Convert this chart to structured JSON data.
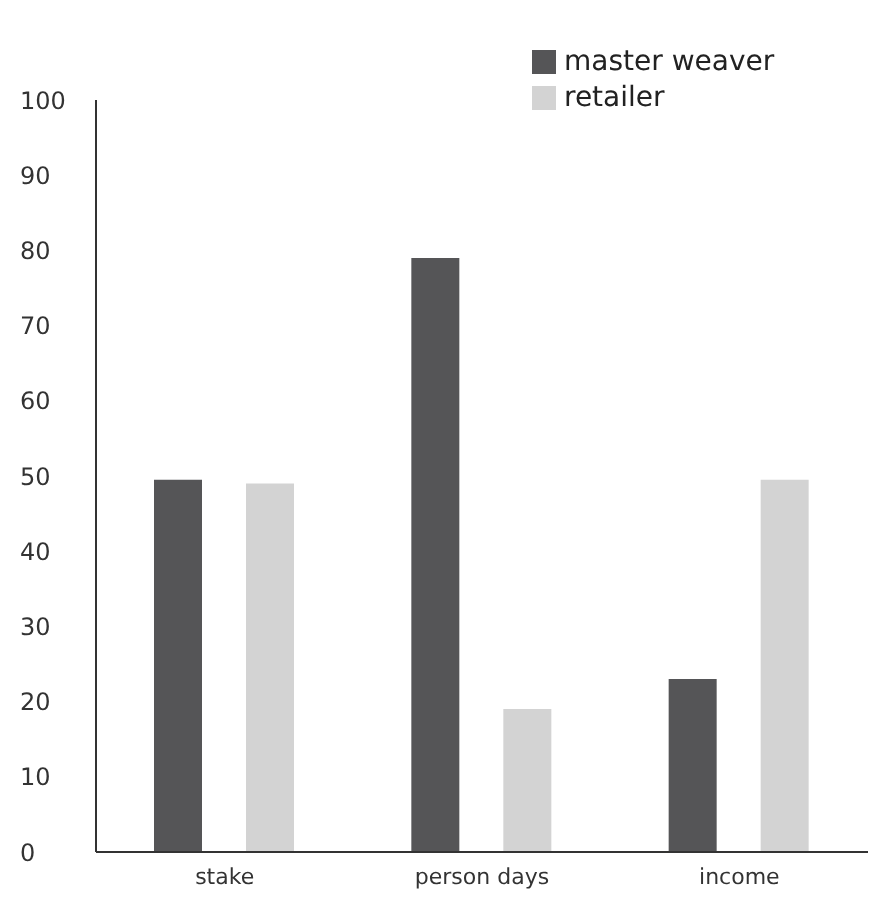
{
  "chart_data": {
    "type": "bar",
    "categories": [
      "stake",
      "person days",
      "income"
    ],
    "series": [
      {
        "name": "master weaver",
        "color": "#555557",
        "values": [
          49.5,
          79,
          23
        ]
      },
      {
        "name": "retailer",
        "color": "#d3d3d3",
        "values": [
          49,
          19,
          49.5
        ]
      }
    ],
    "ylim": [
      0,
      100
    ],
    "yticks": [
      0,
      10,
      20,
      30,
      40,
      50,
      60,
      70,
      80,
      90,
      100
    ],
    "grid": false,
    "legend": "top right"
  }
}
